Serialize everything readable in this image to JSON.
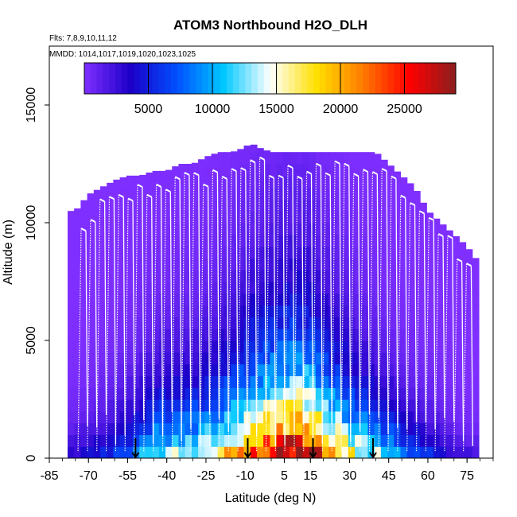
{
  "chart_data": {
    "type": "heatmap",
    "title": "ATOM3 Northbound H2O_DLH",
    "flights_note": "Flts: 7,8,9,10,11,12",
    "dates_note": "MMDD: 1014,1017,1019,1020,1023,1025",
    "xlabel": "Latitude (deg N)",
    "ylabel": "Altitude (m)",
    "xlim": [
      -85,
      85
    ],
    "ylim": [
      0,
      17500
    ],
    "x_ticks": [
      -85,
      -70,
      -55,
      -40,
      -25,
      -10,
      5,
      15,
      30,
      45,
      60,
      75
    ],
    "y_ticks": [
      0,
      5000,
      10000,
      15000
    ],
    "colorbar": {
      "range": [
        0,
        29000
      ],
      "ticks": [
        5000,
        10000,
        15000,
        20000,
        25000
      ],
      "colors": [
        "#7f2fff",
        "#1c00c8",
        "#0050ff",
        "#00c8ff",
        "#ffffff",
        "#ffe000",
        "#ff7a00",
        "#ff0000",
        "#8a1e1e"
      ]
    },
    "transition_markers_lat": [
      -52,
      -9,
      16,
      39
    ],
    "ceiling_profile": {
      "lat": [
        -78,
        -75,
        -70,
        -65,
        -60,
        -55,
        -50,
        -45,
        -40,
        -35,
        -30,
        -25,
        -20,
        -15,
        -10,
        -8,
        -5,
        0,
        5,
        10,
        15,
        20,
        25,
        30,
        35,
        40,
        45,
        50,
        55,
        60,
        65,
        70,
        75,
        78
      ],
      "alt": [
        10500,
        10500,
        11200,
        11500,
        11800,
        12000,
        12000,
        12200,
        12200,
        12500,
        12500,
        12800,
        13000,
        13000,
        13200,
        13400,
        13200,
        13000,
        13000,
        13000,
        13000,
        13000,
        13000,
        13000,
        13000,
        13000,
        12500,
        12000,
        11500,
        10500,
        10000,
        9500,
        9000,
        8500
      ]
    },
    "moisture_field": {
      "lat": [
        -75,
        -70,
        -65,
        -60,
        -55,
        -50,
        -45,
        -40,
        -35,
        -30,
        -25,
        -20,
        -15,
        -10,
        -5,
        0,
        5,
        10,
        15,
        20,
        25,
        30,
        35,
        40,
        45,
        50,
        55,
        60,
        65,
        70,
        75
      ],
      "surface_h2o": [
        3000,
        4000,
        5000,
        6000,
        7000,
        10000,
        12500,
        13000,
        13500,
        14000,
        15000,
        17000,
        19000,
        21000,
        23000,
        25000,
        27000,
        28000,
        26500,
        22000,
        20000,
        16000,
        14000,
        12500,
        10000,
        8000,
        6500,
        5000,
        3500,
        2500,
        2000
      ],
      "moist_depth_m": [
        1200,
        1500,
        1500,
        1800,
        2000,
        2200,
        2300,
        2400,
        2500,
        2500,
        2600,
        2800,
        3000,
        3300,
        3500,
        3500,
        3600,
        3500,
        3400,
        3000,
        2800,
        2600,
        2400,
        2200,
        2000,
        1800,
        1600,
        1400,
        1200,
        1000,
        900
      ]
    }
  }
}
